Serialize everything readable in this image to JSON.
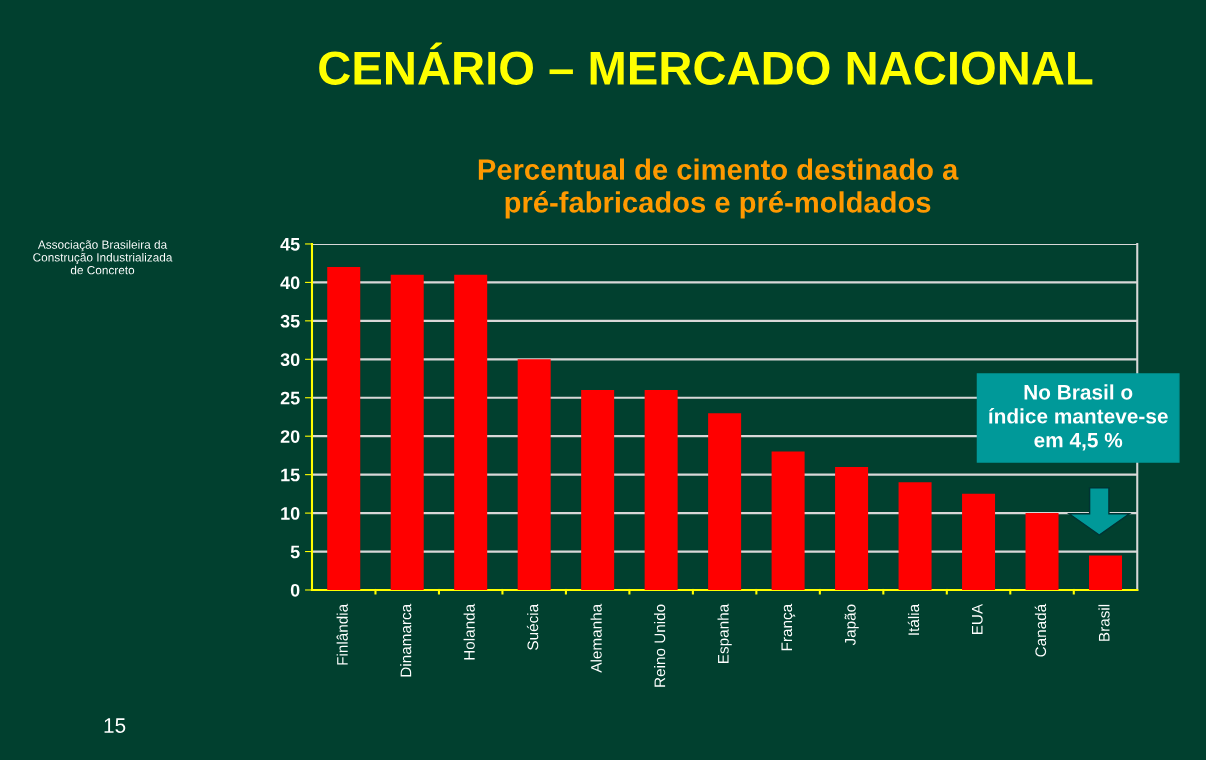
{
  "chart_data": {
    "type": "bar",
    "title": "CENÁRIO – MERCADO NACIONAL",
    "subtitle": "Percentual de cimento destinado a\npré-fabricados e pré-moldados",
    "categories": [
      "Finlândia",
      "Dinamarca",
      "Holanda",
      "Suécia",
      "Alemanha",
      "Reino Unido",
      "Espanha",
      "França",
      "Japão",
      "Itália",
      "EUA",
      "Canadá",
      "Brasil"
    ],
    "values": [
      42,
      41,
      41,
      30,
      26,
      26,
      23,
      18,
      16,
      14,
      12.5,
      10,
      4.5
    ],
    "color": "#ff0000",
    "ylim": [
      0,
      45
    ],
    "yticks": [
      0,
      5,
      10,
      15,
      20,
      25,
      30,
      35,
      40,
      45
    ],
    "grid": "y",
    "annotations": [
      "No Brasil o\níndice manteve-se\nem 4,5 %",
      "Associação Brasileira da\nConstrução Industrializada\nde Concreto",
      "15"
    ]
  }
}
